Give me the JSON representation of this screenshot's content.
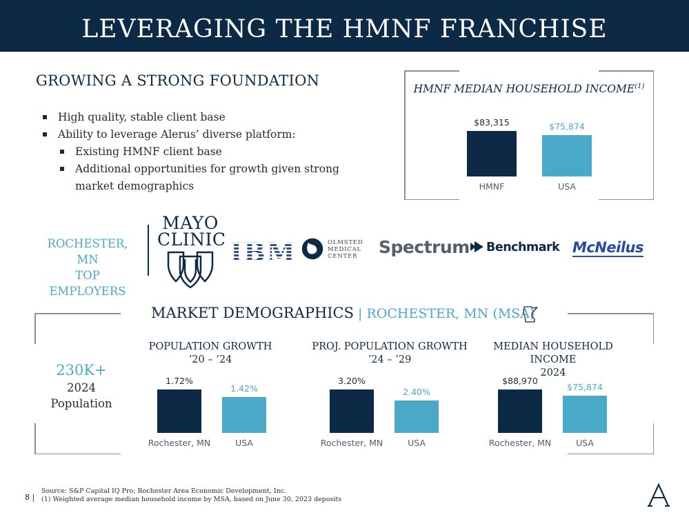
{
  "header": {
    "title": "LEVERAGING THE HMNF FRANCHISE"
  },
  "foundation": {
    "heading": "GROWING A STRONG FOUNDATION",
    "bullets": [
      {
        "text": "High quality, stable client base",
        "level": 1
      },
      {
        "text": "Ability to leverage Alerus’ diverse platform:",
        "level": 1
      },
      {
        "text": "Existing HMNF client base",
        "level": 2
      },
      {
        "text": "Additional opportunities for growth given strong market demographics",
        "level": 2
      }
    ]
  },
  "hmnf_income": {
    "title": "HMNF MEDIAN HOUSEHOLD INCOME",
    "title_footnote": "(1)"
  },
  "employers": {
    "label_line1": "ROCHESTER, MN",
    "label_line2": "TOP EMPLOYERS",
    "logos": {
      "mayo_line1": "MAYO",
      "mayo_line2": "CLINIC",
      "ibm": "IBM",
      "olmsted_line1": "OLMSTED",
      "olmsted_line2": "MEDICAL",
      "olmsted_line3": "CENTER",
      "spectrum": "Spectrum",
      "benchmark": "Benchmark",
      "mcneilus": "McNeilus"
    }
  },
  "demographics": {
    "heading": "MARKET DEMOGRAPHICS",
    "separator": " | ",
    "subheading": "ROCHESTER, MN (MSA)",
    "population_big": "230K+",
    "population_year": "2024",
    "population_label": "Population",
    "icons": {
      "state": "minnesota-outline-icon"
    }
  },
  "chart_data": [
    {
      "type": "bar",
      "title": "HMNF MEDIAN HOUSEHOLD INCOME(1)",
      "categories": [
        "HMNF",
        "USA"
      ],
      "values": [
        83315,
        75874
      ],
      "data_labels": [
        "$83,315",
        "$75,874"
      ],
      "colors": [
        "#0c2a45",
        "#4aa9c7"
      ]
    },
    {
      "type": "bar",
      "title_line1": "POPULATION GROWTH",
      "title_line2": "’20 – ’24",
      "categories": [
        "Rochester, MN",
        "USA"
      ],
      "values": [
        1.72,
        1.42
      ],
      "data_labels": [
        "1.72%",
        "1.42%"
      ],
      "colors": [
        "#0c2a45",
        "#4aa9c7"
      ]
    },
    {
      "type": "bar",
      "title_line1": "PROJ. POPULATION GROWTH",
      "title_line2": "’24 – ’29",
      "categories": [
        "Rochester, MN",
        "USA"
      ],
      "values": [
        3.2,
        2.4
      ],
      "data_labels": [
        "3.20%",
        "2.40%"
      ],
      "colors": [
        "#0c2a45",
        "#4aa9c7"
      ]
    },
    {
      "type": "bar",
      "title_line1": "MEDIAN HOUSEHOLD INCOME",
      "title_line2": "2024",
      "categories": [
        "Rochester, MN",
        "USA"
      ],
      "values": [
        88970,
        75874
      ],
      "data_labels": [
        "$88,970",
        "$75,874"
      ],
      "colors": [
        "#0c2a45",
        "#4aa9c7"
      ]
    }
  ],
  "footer": {
    "page": "8 |",
    "source_line1": "Source: S&P Capital IQ Pro; Rochester Area Economic Development, Inc.",
    "source_line2": "(1) Weighted average median household income by MSA, based on June 30, 2023 deposits",
    "logo_icon": "alerus-a-logo-icon"
  }
}
